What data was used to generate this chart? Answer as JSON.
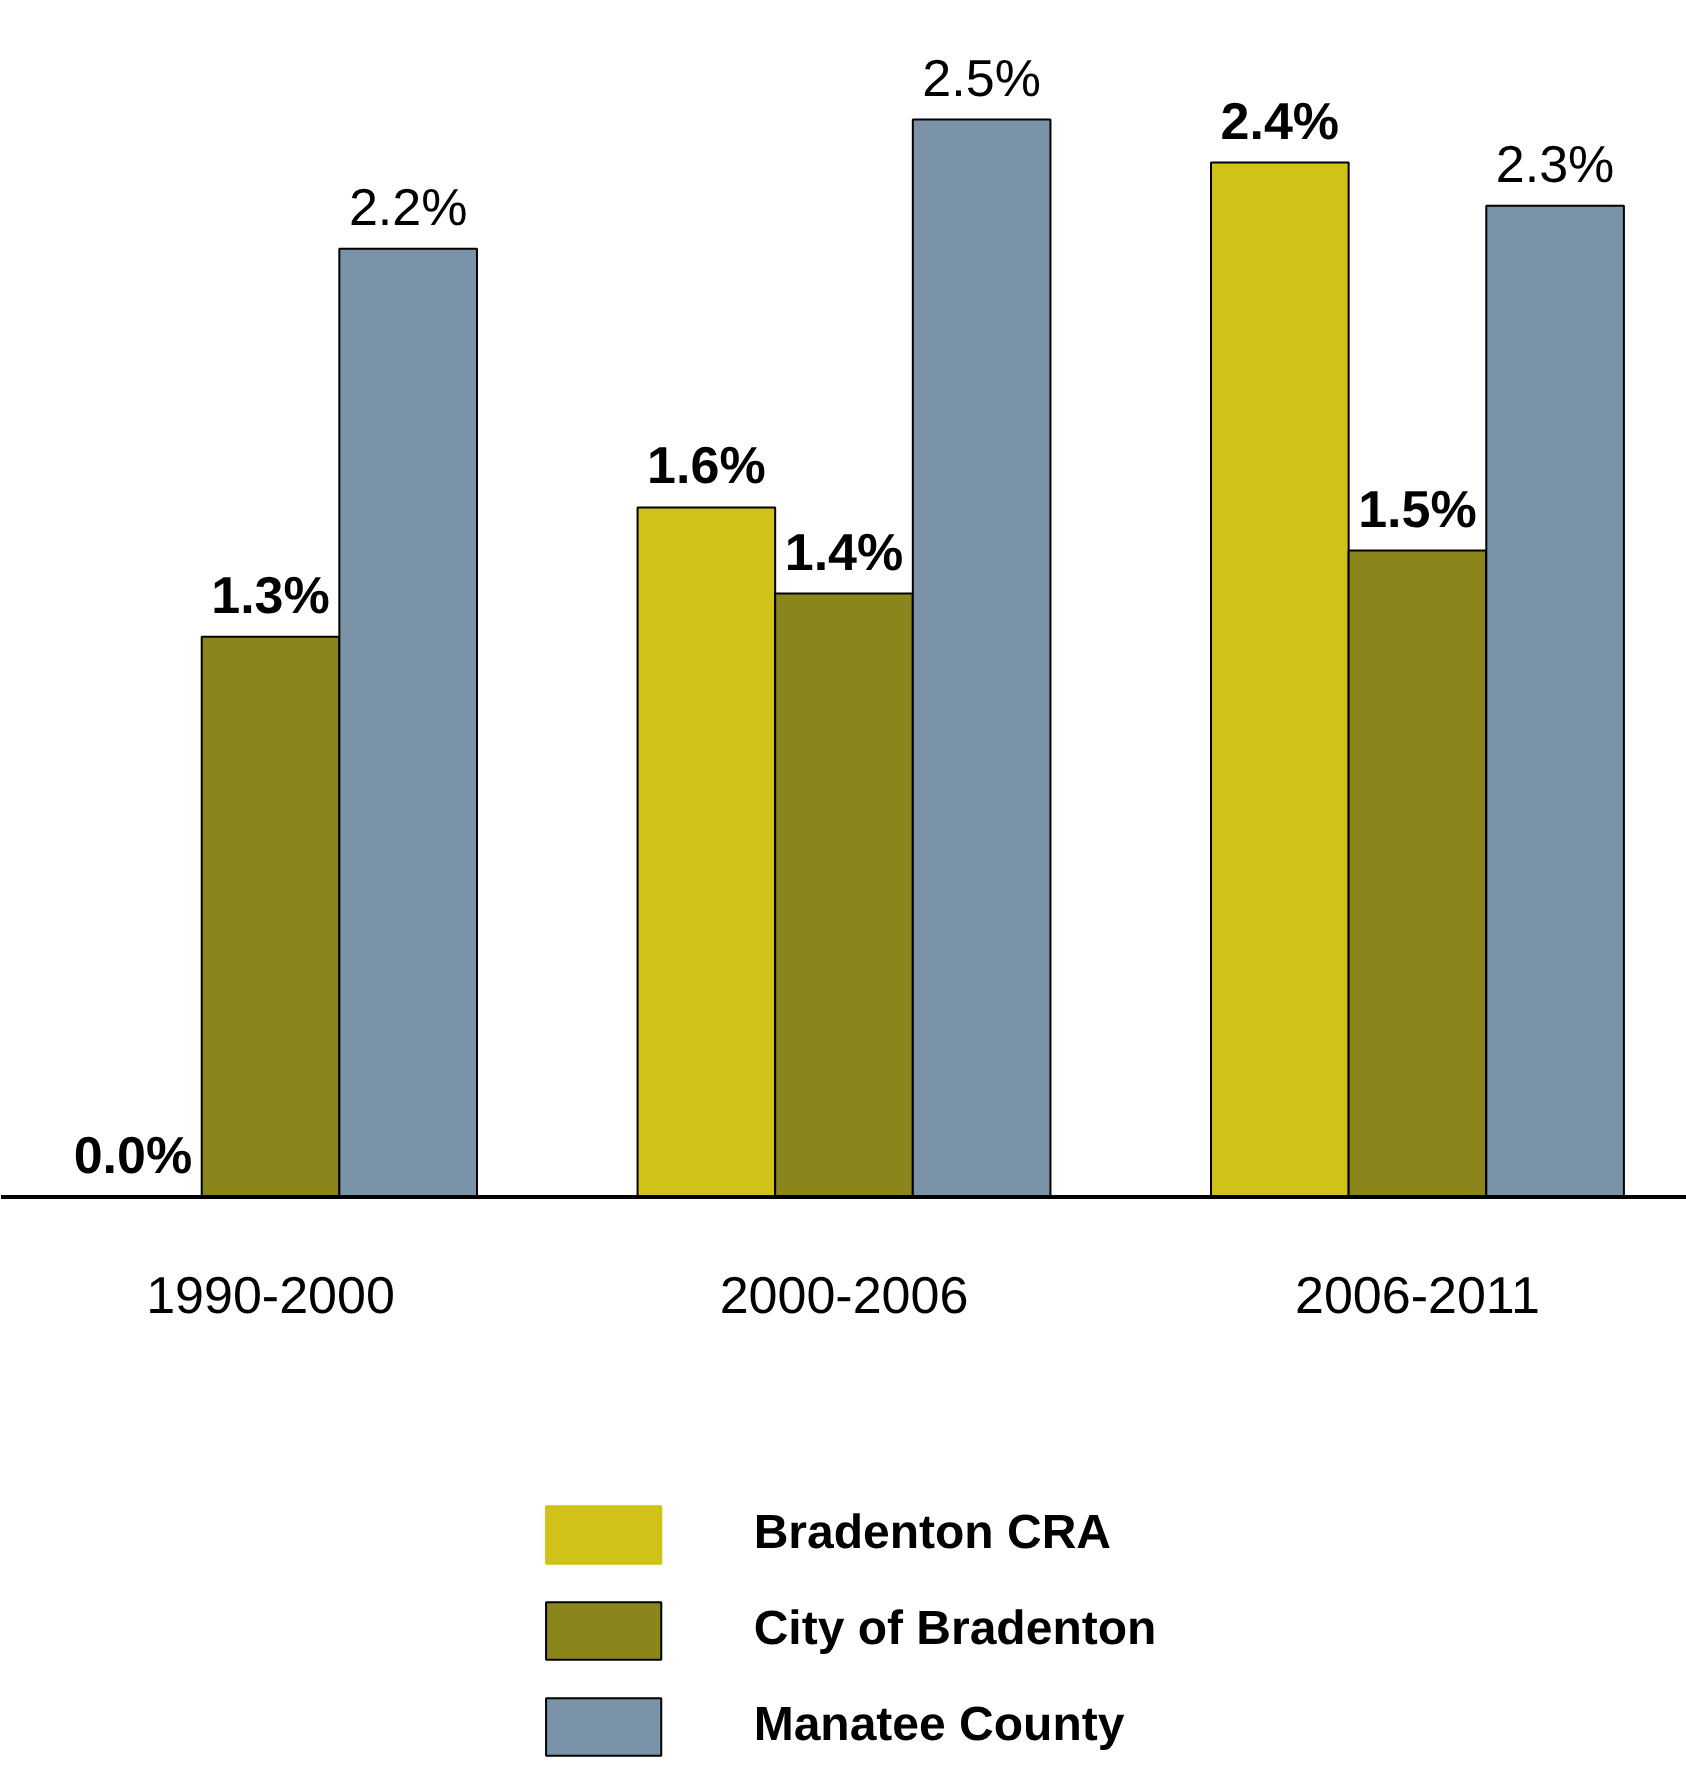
{
  "chart_data": {
    "type": "bar",
    "categories": [
      "1990-2000",
      "2000-2006",
      "2006-2011"
    ],
    "series": [
      {
        "name": "Bradenton CRA",
        "color": "#d0c218",
        "values": [
          0.0,
          1.6,
          2.4
        ],
        "value_labels": [
          "0.0%",
          "1.6%",
          "2.4%"
        ]
      },
      {
        "name": "City of Bradenton",
        "color": "#8a861c",
        "values": [
          1.3,
          1.4,
          1.5
        ],
        "value_labels": [
          "1.3%",
          "1.4%",
          "1.5%"
        ]
      },
      {
        "name": "Manatee County",
        "color": "#7a93a8",
        "values": [
          2.2,
          2.5,
          2.3
        ],
        "value_labels": [
          "2.2%",
          "2.5%",
          "2.3%"
        ]
      }
    ],
    "legend": "bottom"
  }
}
